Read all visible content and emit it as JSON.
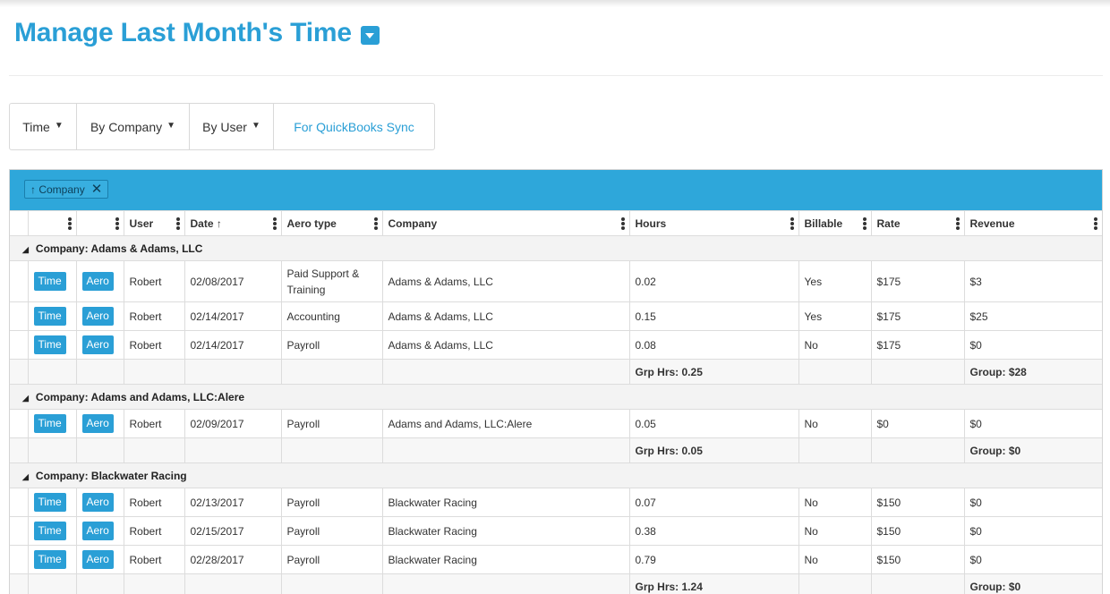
{
  "page": {
    "title": "Manage Last Month's Time"
  },
  "view_tabs": [
    {
      "label": "Time",
      "has_caret": true
    },
    {
      "label": "By Company",
      "has_caret": true
    },
    {
      "label": "By User",
      "has_caret": true
    },
    {
      "label": "For QuickBooks Sync",
      "has_caret": false
    }
  ],
  "group_panel": {
    "chip_label": "↑ Company"
  },
  "columns": [
    "",
    "",
    "User",
    "Date ↑",
    "Aero type",
    "Company",
    "Hours",
    "Billable",
    "Rate",
    "Revenue"
  ],
  "groups": [
    {
      "label": "Company: Adams & Adams, LLC",
      "rows": [
        {
          "btn1": "Time",
          "btn2": "Aero",
          "user": "Robert",
          "date": "02/08/2017",
          "aero_type": "Paid Support & Training",
          "company": "Adams & Adams, LLC",
          "hours": "0.02",
          "billable": "Yes",
          "rate": "$175",
          "revenue": "$3"
        },
        {
          "btn1": "Time",
          "btn2": "Aero",
          "user": "Robert",
          "date": "02/14/2017",
          "aero_type": "Accounting",
          "company": "Adams & Adams, LLC",
          "hours": "0.15",
          "billable": "Yes",
          "rate": "$175",
          "revenue": "$25"
        },
        {
          "btn1": "Time",
          "btn2": "Aero",
          "user": "Robert",
          "date": "02/14/2017",
          "aero_type": "Payroll",
          "company": "Adams & Adams, LLC",
          "hours": "0.08",
          "billable": "No",
          "rate": "$175",
          "revenue": "$0"
        }
      ],
      "summary": {
        "hours": "Grp Hrs: 0.25",
        "revenue": "Group: $28"
      }
    },
    {
      "label": "Company: Adams and Adams, LLC:Alere",
      "rows": [
        {
          "btn1": "Time",
          "btn2": "Aero",
          "user": "Robert",
          "date": "02/09/2017",
          "aero_type": "Payroll",
          "company": "Adams and Adams, LLC:Alere",
          "hours": "0.05",
          "billable": "No",
          "rate": "$0",
          "revenue": "$0"
        }
      ],
      "summary": {
        "hours": "Grp Hrs: 0.05",
        "revenue": "Group: $0"
      }
    },
    {
      "label": "Company: Blackwater Racing",
      "rows": [
        {
          "btn1": "Time",
          "btn2": "Aero",
          "user": "Robert",
          "date": "02/13/2017",
          "aero_type": "Payroll",
          "company": "Blackwater Racing",
          "hours": "0.07",
          "billable": "No",
          "rate": "$150",
          "revenue": "$0"
        },
        {
          "btn1": "Time",
          "btn2": "Aero",
          "user": "Robert",
          "date": "02/15/2017",
          "aero_type": "Payroll",
          "company": "Blackwater Racing",
          "hours": "0.38",
          "billable": "No",
          "rate": "$150",
          "revenue": "$0"
        },
        {
          "btn1": "Time",
          "btn2": "Aero",
          "user": "Robert",
          "date": "02/28/2017",
          "aero_type": "Payroll",
          "company": "Blackwater Racing",
          "hours": "0.79",
          "billable": "No",
          "rate": "$150",
          "revenue": "$0"
        }
      ],
      "summary": {
        "hours": "Grp Hrs: 1.24",
        "revenue": "Group: $0"
      }
    }
  ],
  "colors": {
    "accent": "#2a9fd6",
    "group_panel": "#2ea7da"
  }
}
